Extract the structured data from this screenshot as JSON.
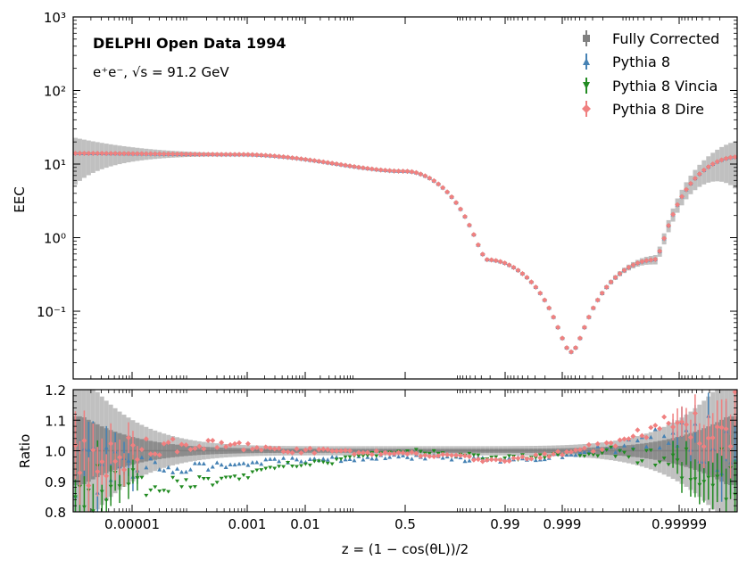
{
  "chart_data": [
    {
      "type": "line",
      "name": "main-panel",
      "title": "DELPHI Open Data 1994",
      "subtitle": "e⁺e⁻, √s = 91.2 GeV",
      "ylabel": "EEC",
      "yscale": "log",
      "ylim": [
        0.012,
        1000
      ],
      "y_ticks": [
        {
          "value": 0.1,
          "label": "10⁻¹"
        },
        {
          "value": 1,
          "label": "10⁰"
        },
        {
          "value": 10,
          "label": "10¹"
        },
        {
          "value": 100,
          "label": "10²"
        },
        {
          "value": 1000,
          "label": "10³"
        }
      ],
      "legend": {
        "placement": "top-right",
        "entries": [
          {
            "label": "Fully Corrected",
            "color": "#808080",
            "marker": "square"
          },
          {
            "label": "Pythia 8",
            "color": "#4682b4",
            "marker": "triangle-up"
          },
          {
            "label": "Pythia 8 Vincia",
            "color": "#228b22",
            "marker": "triangle-down"
          },
          {
            "label": "Pythia 8 Dire",
            "color": "#f08080",
            "marker": "diamond"
          }
        ]
      },
      "x_knots": [
        -1,
        -0.5,
        0,
        0.25,
        0.5,
        0.75,
        1
      ],
      "y_knots": [
        14,
        13.5,
        8,
        0.5,
        0.028,
        0.5,
        12.5
      ],
      "series_colors": {
        "fully_corrected": "#808080",
        "pythia8": "#4682b4",
        "vincia": "#228b22",
        "dire": "#f08080"
      }
    },
    {
      "type": "scatter",
      "name": "ratio-panel",
      "ylabel": "Ratio",
      "xlabel": "z = (1 − cos(θL))/2",
      "ylim": [
        0.8,
        1.2
      ],
      "y_ticks": [
        {
          "value": 0.8,
          "label": "0.8"
        },
        {
          "value": 0.9,
          "label": "0.9"
        },
        {
          "value": 1.0,
          "label": "1.0"
        },
        {
          "value": 1.1,
          "label": "1.1"
        },
        {
          "value": 1.2,
          "label": "1.2"
        }
      ],
      "x_ticks": [
        {
          "label": "0.00001"
        },
        {
          "label": "0.001"
        },
        {
          "label": "0.01"
        },
        {
          "label": "0.5"
        },
        {
          "label": "0.99"
        },
        {
          "label": "0.999"
        },
        {
          "label": "0.99999"
        }
      ],
      "series": [
        {
          "name": "Pythia 8",
          "x_knots": [
            -1,
            -0.6,
            -0.3,
            0,
            0.3,
            0.6,
            0.8,
            1
          ],
          "y_knots": [
            0.93,
            0.95,
            0.97,
            0.98,
            0.97,
            1.0,
            1.05,
            1.02
          ]
        },
        {
          "name": "Pythia 8 Vincia",
          "x_knots": [
            -1,
            -0.6,
            -0.3,
            0,
            0.3,
            0.6,
            0.8,
            1
          ],
          "y_knots": [
            0.88,
            0.9,
            0.96,
            1.0,
            0.98,
            1.0,
            0.97,
            0.95
          ]
        },
        {
          "name": "Pythia 8 Dire",
          "x_knots": [
            -1,
            -0.6,
            -0.3,
            0,
            0.3,
            0.6,
            0.8,
            1
          ],
          "y_knots": [
            0.97,
            1.02,
            1.0,
            0.99,
            0.97,
            1.01,
            1.08,
            1.1
          ]
        }
      ]
    }
  ]
}
